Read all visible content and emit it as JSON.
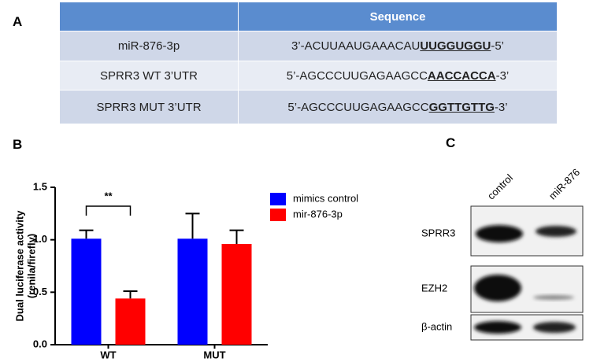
{
  "panels": {
    "a": "A",
    "b": "B",
    "c": "C"
  },
  "table": {
    "header": {
      "sequence": "Sequence"
    },
    "rows": [
      {
        "name": "miR-876-3p",
        "prefix": "3’-ACUUAAUGAAACAU",
        "site": "UUGGUGGU",
        "suffix": "-5’"
      },
      {
        "name": "SPRR3 WT 3’UTR",
        "prefix": "5’-AGCCCUUGAGAAGCC",
        "site": "AACCACCA",
        "suffix": "-3’"
      },
      {
        "name": "SPRR3 MUT 3’UTR",
        "prefix": "5’-AGCCCUUGAGAAGCC",
        "site": "GGTTGTTG",
        "suffix": "-3’"
      }
    ]
  },
  "chart_data": {
    "type": "bar",
    "y_label": [
      "Dual luciferase activity",
      "(renila/firefly)"
    ],
    "categories": [
      "WT",
      "MUT"
    ],
    "series": [
      {
        "name": "mimics control",
        "color": "#0000ff",
        "values": [
          1.01,
          1.01
        ],
        "errors": [
          0.08,
          0.24
        ]
      },
      {
        "name": "mir-876-3p",
        "color": "#ff0000",
        "values": [
          0.44,
          0.96
        ],
        "errors": [
          0.07,
          0.13
        ]
      }
    ],
    "ylim": [
      0,
      1.5
    ],
    "yticks": [
      {
        "value": 0,
        "label": "0.0"
      },
      {
        "value": 0.5,
        "label": "0.5"
      },
      {
        "value": 1,
        "label": "1.0"
      },
      {
        "value": 1.5,
        "label": "1.5"
      }
    ],
    "annotation": "**"
  },
  "blot": {
    "lanes": [
      "control",
      "miR-876"
    ],
    "rows": [
      "SPRR3",
      "EZH2",
      "β-actin"
    ]
  }
}
